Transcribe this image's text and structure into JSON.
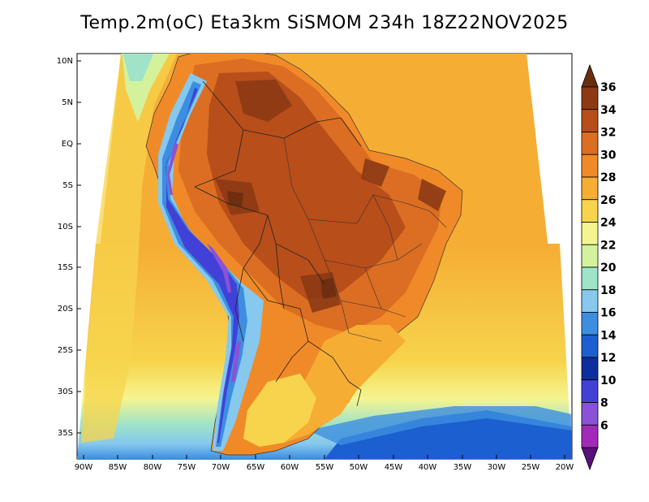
{
  "title": "Temp.2m(oC) Eta3km SiSMOM 234h 18Z22NOV2025",
  "lat_labels": [
    "10N",
    "5N",
    "EQ",
    "5S",
    "10S",
    "15S",
    "20S",
    "25S",
    "30S",
    "35S"
  ],
  "lon_labels": [
    "90W",
    "85W",
    "80W",
    "75W",
    "70W",
    "65W",
    "60W",
    "55W",
    "50W",
    "45W",
    "40W",
    "35W",
    "30W",
    "25W",
    "20W"
  ],
  "colorbar": {
    "labels": [
      "36",
      "34",
      "32",
      "30",
      "28",
      "26",
      "24",
      "22",
      "20",
      "18",
      "16",
      "14",
      "12",
      "10",
      "8",
      "6"
    ],
    "colors": [
      "#6b2d10",
      "#8c3a14",
      "#b84e1a",
      "#db6e22",
      "#f08a28",
      "#f5ad34",
      "#f7d44c",
      "#f5f590",
      "#d4f29c",
      "#9fe3c8",
      "#86c8ee",
      "#3d8ee0",
      "#1b5fd0",
      "#0d2e9c",
      "#4141d8",
      "#8a52d6",
      "#a22ab8",
      "#5a0f7a"
    ]
  }
}
